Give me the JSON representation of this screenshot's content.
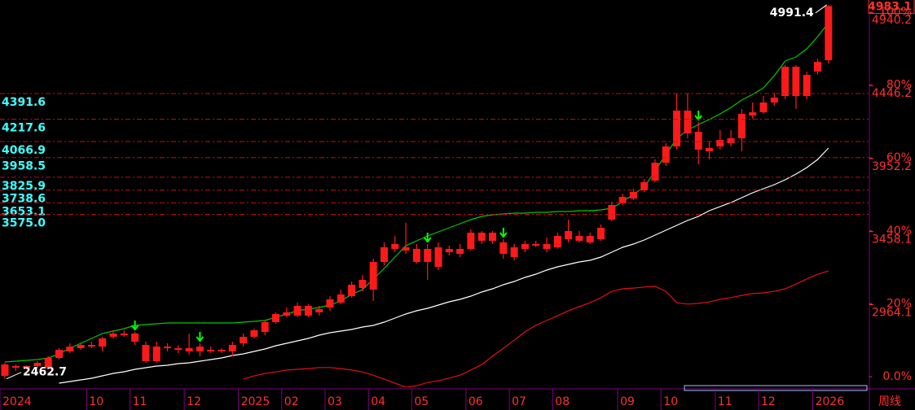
{
  "chart_data": {
    "type": "candlestick",
    "period_label": "周线",
    "categories": [
      "2024",
      null,
      null,
      null,
      null,
      null,
      null,
      null,
      "10",
      null,
      null,
      null,
      "11",
      null,
      null,
      null,
      null,
      "12",
      null,
      null,
      null,
      null,
      "2025",
      null,
      null,
      null,
      "02",
      null,
      null,
      null,
      "03",
      null,
      null,
      null,
      "04",
      null,
      null,
      null,
      "05",
      null,
      null,
      null,
      null,
      "06",
      null,
      null,
      null,
      "07",
      null,
      null,
      null,
      "08",
      null,
      null,
      null,
      null,
      null,
      "09",
      null,
      null,
      null,
      "10",
      null,
      null,
      null,
      null,
      "11",
      null,
      null,
      null,
      "12",
      null,
      null,
      null,
      null,
      "2026",
      null
    ],
    "open": [
      2483,
      2538,
      2538,
      2549,
      2538,
      2604,
      2648,
      2670,
      2681,
      2681,
      2747,
      2758,
      2769,
      2692,
      2681,
      2681,
      2670,
      2670,
      2681,
      2648,
      2659,
      2648,
      2703,
      2747,
      2780,
      2846,
      2890,
      2890,
      2890,
      2912,
      2945,
      2978,
      3022,
      3077,
      3066,
      3253,
      3341,
      3352,
      3253,
      3341,
      3220,
      3319,
      3308,
      3341,
      3396,
      3451,
      3385,
      3286,
      3341,
      3374,
      3341,
      3352,
      3462,
      3396,
      3385,
      3407,
      3539,
      3649,
      3682,
      3737,
      3803,
      3924,
      4034,
      4122,
      4133,
      4001,
      4034,
      4056,
      4089,
      4243,
      4265,
      4331,
      4375,
      4375,
      4375,
      4540,
      4617
    ],
    "close": [
      2560,
      2549,
      2549,
      2571,
      2604,
      2659,
      2681,
      2692,
      2692,
      2736,
      2769,
      2769,
      2714,
      2582,
      2582,
      2670,
      2659,
      2648,
      2648,
      2659,
      2648,
      2692,
      2747,
      2791,
      2846,
      2901,
      2912,
      2956,
      2956,
      2934,
      3000,
      3033,
      3099,
      3132,
      3253,
      3352,
      3374,
      3330,
      3341,
      3253,
      3352,
      3341,
      3341,
      3451,
      3451,
      3396,
      3308,
      3352,
      3374,
      3363,
      3374,
      3429,
      3407,
      3429,
      3429,
      3484,
      3638,
      3693,
      3726,
      3792,
      3924,
      4034,
      4276,
      4276,
      4012,
      4023,
      4078,
      4089,
      4254,
      4265,
      4331,
      4364,
      4573,
      4573,
      4518,
      4606,
      4983.1
    ],
    "high": [
      2571,
      2560,
      2554.5,
      2582,
      2615,
      2670,
      2703,
      2703,
      2714,
      2747,
      2791,
      2791,
      2780,
      2714,
      2714,
      2703,
      2692,
      2769,
      2703,
      2681,
      2670,
      2714,
      2769,
      2802,
      2857,
      2912,
      2945,
      2978,
      2967,
      2956,
      3022,
      3066,
      3121,
      3165,
      3275,
      3385,
      3429,
      3517,
      3374,
      3374,
      3385,
      3363,
      3374,
      3473,
      3462,
      3462,
      3407,
      3374,
      3396,
      3396,
      3418,
      3451,
      3539,
      3462,
      3451,
      3506,
      3660,
      3715,
      3748,
      3814,
      3946,
      4056,
      4391.5,
      4391.5,
      4199,
      4067,
      4144,
      4144,
      4287,
      4331,
      4375,
      4397,
      4584,
      4584,
      4540,
      4628,
      4991.4
    ],
    "low": [
      2462.7,
      2516,
      2527,
      2538,
      2527,
      2593,
      2637,
      2659,
      2670,
      2648,
      2736,
      2747,
      2692,
      2571,
      2571,
      2648,
      2637,
      2626,
      2615,
      2637,
      2637,
      2615,
      2681,
      2736,
      2758,
      2835,
      2879,
      2879,
      2879,
      2890,
      2923,
      2967,
      3011,
      3055,
      2989,
      3231,
      3319,
      3308,
      3242,
      3132,
      3198,
      3297,
      3286,
      3330,
      3374,
      3374,
      3275,
      3264,
      3319,
      3352,
      3319,
      3341,
      3385,
      3385,
      3374,
      3396,
      3528,
      3638,
      3671,
      3726,
      3792,
      3902,
      4012,
      4089,
      3913,
      3946,
      4012,
      4034,
      4001,
      4221,
      4254,
      4309,
      4353,
      4287,
      4353,
      4518,
      4595
    ],
    "candle_color": "#ff1a1a",
    "series": [
      {
        "color": "#00c800",
        "values": [
          2576.5,
          2582,
          2587.5,
          2593,
          2604,
          2631.5,
          2670,
          2703,
          2736,
          2769,
          2785.5,
          2802,
          2824,
          2829.5,
          2835,
          2840.5,
          2840.5,
          2840.5,
          2840.5,
          2840.5,
          2840.5,
          2840.5,
          2846,
          2851.5,
          2857,
          2879,
          2901,
          2923,
          2934,
          2945,
          2961.5,
          2989,
          3033,
          3066,
          3137.5,
          3209,
          3286,
          3363,
          3396,
          3429,
          3456.5,
          3484,
          3511.5,
          3539,
          3561,
          3572,
          3577.5,
          3583,
          3583,
          3588.5,
          3588.5,
          3594,
          3594,
          3599.5,
          3599.5,
          3605,
          3616,
          3660,
          3709.5,
          3759,
          3869,
          3979,
          4089,
          4144,
          4182.5,
          4215.5,
          4254,
          4298,
          4347.5,
          4386,
          4430,
          4512.5,
          4611.5,
          4639,
          4694,
          4776.5,
          4870
        ]
      },
      {
        "color": "#ffffff",
        "values": [
          null,
          null,
          null,
          null,
          null,
          2433.5,
          2444.5,
          2455.5,
          2466.5,
          2483,
          2499.5,
          2510.5,
          2527,
          2538,
          2549,
          2554.5,
          2565.5,
          2571,
          2582,
          2593,
          2604,
          2620.5,
          2631.5,
          2648,
          2664.5,
          2686.5,
          2703,
          2719.5,
          2736,
          2758,
          2774.5,
          2785.5,
          2796.5,
          2813,
          2824,
          2846,
          2873.5,
          2901,
          2923,
          2939.5,
          2961.5,
          2983.5,
          3000,
          3022,
          3049.5,
          3071.5,
          3099,
          3121,
          3148.5,
          3170.5,
          3198,
          3220,
          3236.5,
          3253,
          3264,
          3286,
          3319,
          3352,
          3374,
          3401.5,
          3434.5,
          3467.5,
          3500.5,
          3533.5,
          3561,
          3599.5,
          3627,
          3654.5,
          3687.5,
          3720.5,
          3748,
          3775.5,
          3808.5,
          3847,
          3891,
          3946,
          4023
        ]
      },
      {
        "color": "#e01010",
        "axis": "y2",
        "values": [
          null,
          null,
          null,
          null,
          null,
          null,
          null,
          null,
          null,
          null,
          null,
          null,
          null,
          null,
          null,
          null,
          null,
          null,
          null,
          null,
          null,
          null,
          -0.7,
          0.2,
          0.9,
          1.3,
          1.8,
          2.0,
          2.2,
          2.5,
          2.5,
          2.2,
          1.8,
          1.3,
          0.4,
          -0.7,
          -1.8,
          -2.9,
          -2.5,
          -1.6,
          -1.1,
          -0.4,
          0.4,
          1.8,
          3.3,
          5.6,
          7.8,
          10.0,
          12.3,
          14.1,
          15.4,
          16.7,
          18.1,
          19.2,
          20.3,
          21.7,
          23.4,
          24.1,
          24.3,
          24.6,
          24.8,
          23.4,
          20.3,
          19.9,
          20.1,
          20.5,
          21.2,
          21.7,
          22.3,
          22.8,
          23.0,
          23.4,
          24.1,
          25.4,
          26.8,
          28.1,
          29.0
        ]
      }
    ],
    "signals": [
      12,
      18,
      39,
      46,
      64
    ],
    "signal_color": "#00ff00",
    "levels": [
      4391.6,
      4217.6,
      4066.9,
      3958.5,
      3825.9,
      3738.6,
      3653.1,
      {
        "value": 3575,
        "label": "3575.0"
      }
    ],
    "level_color": "#c01010",
    "ylim": [
      2411.5,
      5024
    ],
    "yticks": [
      4983.1,
      4940.2,
      4446.2,
      3952.2,
      3458.1,
      2964.1
    ],
    "y2lim": [
      -2.68,
      103.35
    ],
    "y2ticks": [
      {
        "value": 100,
        "label": "100%"
      },
      {
        "value": 80,
        "label": "80%"
      },
      {
        "value": 60,
        "label": "60%"
      },
      {
        "value": 40,
        "label": "40%"
      },
      {
        "value": 20,
        "label": "20%"
      },
      {
        "value": 0,
        "label": "0.0%"
      }
    ]
  }
}
